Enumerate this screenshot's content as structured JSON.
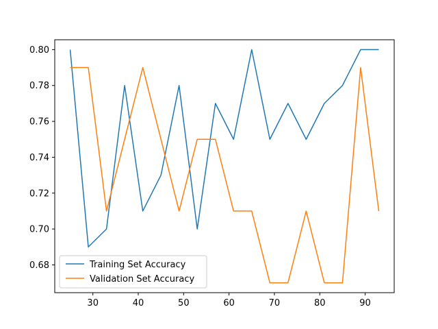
{
  "chart_data": {
    "type": "line",
    "x": [
      25,
      29,
      33,
      37,
      41,
      45,
      49,
      53,
      57,
      61,
      65,
      69,
      73,
      77,
      81,
      85,
      89,
      93
    ],
    "series": [
      {
        "name": "Training Set Accuracy",
        "color": "#1f77b4",
        "values": [
          0.8,
          0.69,
          0.7,
          0.78,
          0.71,
          0.73,
          0.78,
          0.7,
          0.77,
          0.75,
          0.8,
          0.75,
          0.77,
          0.75,
          0.77,
          0.78,
          0.8,
          0.8
        ]
      },
      {
        "name": "Validation Set Accuracy",
        "color": "#ff7f0e",
        "values": [
          0.79,
          0.79,
          0.71,
          0.75,
          0.79,
          0.75,
          0.71,
          0.75,
          0.75,
          0.71,
          0.71,
          0.67,
          0.67,
          0.71,
          0.67,
          0.67,
          0.79,
          0.71
        ]
      }
    ],
    "xlim": [
      21.6,
      96.4
    ],
    "ylim": [
      0.6645,
      0.8055
    ],
    "xticks": [
      30,
      40,
      50,
      60,
      70,
      80,
      90
    ],
    "yticks": [
      0.68,
      0.7,
      0.72,
      0.74,
      0.76,
      0.78,
      0.8
    ],
    "ytick_labels": [
      "0.68",
      "0.70",
      "0.72",
      "0.74",
      "0.76",
      "0.78",
      "0.80"
    ],
    "title": "",
    "xlabel": "",
    "ylabel": "",
    "grid": false,
    "legend_position": "lower-left"
  }
}
